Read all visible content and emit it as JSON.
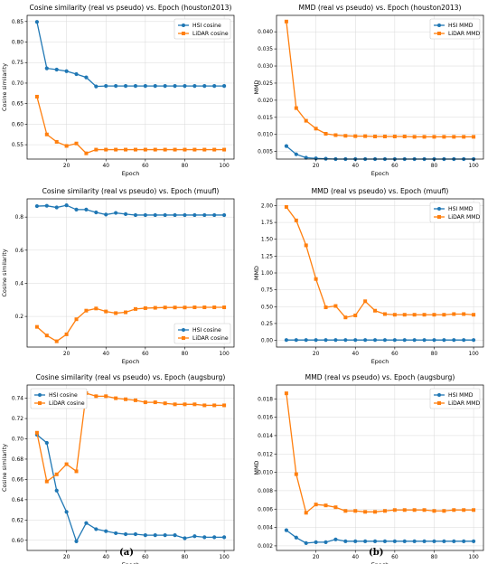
{
  "captions": {
    "left": "(a)",
    "right": "(b)"
  },
  "colors": {
    "hsi": "#1f77b4",
    "lidar": "#ff7f0e",
    "grid": "#d9d9d9"
  },
  "chart_data": [
    {
      "type": "line",
      "title": "Cosine similarity (real vs pseudo) vs. Epoch (houston2013)",
      "xlabel": "Epoch",
      "ylabel": "Cosine similarity",
      "xlim": [
        0,
        105
      ],
      "ylim": [
        0.515,
        0.865
      ],
      "xticks": [
        20,
        40,
        60,
        80,
        100
      ],
      "yticks": [
        0.55,
        0.6,
        0.65,
        0.7,
        0.75,
        0.8,
        0.85
      ],
      "yticklabels": [
        "0.55",
        "0.60",
        "0.65",
        "0.70",
        "0.75",
        "0.80",
        "0.85"
      ],
      "grid": true,
      "legend": "top-right",
      "x": [
        5,
        10,
        15,
        20,
        25,
        30,
        35,
        40,
        45,
        50,
        55,
        60,
        65,
        70,
        75,
        80,
        85,
        90,
        95,
        100
      ],
      "series": [
        {
          "name": "HSI cosine",
          "color": "#1f77b4",
          "marker": "circle",
          "values": [
            0.849,
            0.736,
            0.733,
            0.729,
            0.722,
            0.714,
            0.692,
            0.693,
            0.693,
            0.693,
            0.693,
            0.693,
            0.693,
            0.693,
            0.693,
            0.693,
            0.693,
            0.693,
            0.693,
            0.693
          ]
        },
        {
          "name": "LiDAR cosine",
          "color": "#ff7f0e",
          "marker": "square",
          "values": [
            0.667,
            0.575,
            0.557,
            0.547,
            0.553,
            0.529,
            0.538,
            0.538,
            0.538,
            0.538,
            0.538,
            0.538,
            0.538,
            0.538,
            0.538,
            0.538,
            0.538,
            0.538,
            0.538,
            0.538
          ]
        }
      ]
    },
    {
      "type": "line",
      "title": "MMD (real vs pseudo) vs. Epoch (houston2013)",
      "xlabel": "Epoch",
      "ylabel": "MMD",
      "xlim": [
        0,
        105
      ],
      "ylim": [
        0.0028,
        0.0448
      ],
      "xticks": [
        20,
        40,
        60,
        80,
        100
      ],
      "yticks": [
        0.005,
        0.01,
        0.015,
        0.02,
        0.025,
        0.03,
        0.035,
        0.04
      ],
      "yticklabels": [
        "0.005",
        "0.010",
        "0.015",
        "0.020",
        "0.025",
        "0.030",
        "0.035",
        "0.040"
      ],
      "grid": true,
      "legend": "top-right",
      "x": [
        5,
        10,
        15,
        20,
        25,
        30,
        35,
        40,
        45,
        50,
        55,
        60,
        65,
        70,
        75,
        80,
        85,
        90,
        95,
        100
      ],
      "series": [
        {
          "name": "HSI MMD",
          "color": "#1f77b4",
          "marker": "circle",
          "values": [
            0.0066,
            0.0042,
            0.0032,
            0.003,
            0.0029,
            0.0028,
            0.0028,
            0.0028,
            0.0028,
            0.0028,
            0.0028,
            0.0028,
            0.0028,
            0.0028,
            0.0028,
            0.0028,
            0.0028,
            0.0028,
            0.0028,
            0.0028
          ]
        },
        {
          "name": "LiDAR MMD",
          "color": "#ff7f0e",
          "marker": "square",
          "values": [
            0.043,
            0.0177,
            0.014,
            0.0117,
            0.0102,
            0.0098,
            0.0096,
            0.0095,
            0.0095,
            0.0094,
            0.0094,
            0.0094,
            0.0094,
            0.0093,
            0.0093,
            0.0093,
            0.0093,
            0.0093,
            0.0093,
            0.0093
          ]
        }
      ]
    },
    {
      "type": "line",
      "title": "Cosine similarity (real vs pseudo) vs. Epoch (muufl)",
      "xlabel": "Epoch",
      "ylabel": "Cosine similarity",
      "xlim": [
        0,
        105
      ],
      "ylim": [
        0.015,
        0.91
      ],
      "xticks": [
        20,
        40,
        60,
        80,
        100
      ],
      "yticks": [
        0.2,
        0.4,
        0.6,
        0.8
      ],
      "yticklabels": [
        "0.2",
        "0.4",
        "0.6",
        "0.8"
      ],
      "grid": true,
      "legend": "bottom-right",
      "x": [
        5,
        10,
        15,
        20,
        25,
        30,
        35,
        40,
        45,
        50,
        55,
        60,
        65,
        70,
        75,
        80,
        85,
        90,
        95,
        100
      ],
      "series": [
        {
          "name": "HSI cosine",
          "color": "#1f77b4",
          "marker": "circle",
          "values": [
            0.866,
            0.868,
            0.858,
            0.871,
            0.845,
            0.845,
            0.828,
            0.815,
            0.825,
            0.818,
            0.812,
            0.812,
            0.812,
            0.812,
            0.812,
            0.812,
            0.812,
            0.812,
            0.812,
            0.812
          ]
        },
        {
          "name": "LiDAR cosine",
          "color": "#ff7f0e",
          "marker": "square",
          "values": [
            0.137,
            0.085,
            0.05,
            0.092,
            0.183,
            0.235,
            0.248,
            0.23,
            0.22,
            0.225,
            0.245,
            0.25,
            0.252,
            0.254,
            0.254,
            0.254,
            0.255,
            0.255,
            0.255,
            0.255
          ]
        }
      ]
    },
    {
      "type": "line",
      "title": "MMD (real vs pseudo) vs. Epoch (muufl)",
      "xlabel": "Epoch",
      "ylabel": "MMD",
      "xlim": [
        0,
        105
      ],
      "ylim": [
        -0.1,
        2.1
      ],
      "xticks": [
        20,
        40,
        60,
        80,
        100
      ],
      "yticks": [
        0,
        0.25,
        0.5,
        0.75,
        1,
        1.25,
        1.5,
        1.75,
        2
      ],
      "yticklabels": [
        "0.00",
        "0.25",
        "0.50",
        "0.75",
        "1.00",
        "1.25",
        "1.50",
        "1.75",
        "2.00"
      ],
      "grid": true,
      "legend": "top-right",
      "x": [
        5,
        10,
        15,
        20,
        25,
        30,
        35,
        40,
        45,
        50,
        55,
        60,
        65,
        70,
        75,
        80,
        85,
        90,
        95,
        100
      ],
      "series": [
        {
          "name": "HSI MMD",
          "color": "#1f77b4",
          "marker": "circle",
          "values": [
            0.005,
            0.005,
            0.005,
            0.005,
            0.005,
            0.005,
            0.005,
            0.005,
            0.005,
            0.005,
            0.005,
            0.005,
            0.005,
            0.005,
            0.005,
            0.005,
            0.005,
            0.005,
            0.005,
            0.005
          ]
        },
        {
          "name": "LiDAR MMD",
          "color": "#ff7f0e",
          "marker": "square",
          "values": [
            1.98,
            1.78,
            1.41,
            0.91,
            0.49,
            0.51,
            0.34,
            0.37,
            0.58,
            0.44,
            0.39,
            0.38,
            0.38,
            0.38,
            0.38,
            0.38,
            0.38,
            0.39,
            0.39,
            0.38
          ]
        }
      ]
    },
    {
      "type": "line",
      "title": "Cosine similarity (real vs pseudo) vs. Epoch (augsburg)",
      "xlabel": "Epoch",
      "ylabel": "Cosine similarity",
      "xlim": [
        0,
        105
      ],
      "ylim": [
        0.59,
        0.753
      ],
      "xticks": [
        20,
        40,
        60,
        80,
        100
      ],
      "yticks": [
        0.6,
        0.62,
        0.64,
        0.66,
        0.68,
        0.7,
        0.72,
        0.74
      ],
      "yticklabels": [
        "0.60",
        "0.62",
        "0.64",
        "0.66",
        "0.68",
        "0.70",
        "0.72",
        "0.74"
      ],
      "grid": true,
      "legend": "top-left",
      "x": [
        5,
        10,
        15,
        20,
        25,
        30,
        35,
        40,
        45,
        50,
        55,
        60,
        65,
        70,
        75,
        80,
        85,
        90,
        95,
        100
      ],
      "series": [
        {
          "name": "HSI cosine",
          "color": "#1f77b4",
          "marker": "circle",
          "values": [
            0.704,
            0.696,
            0.649,
            0.628,
            0.599,
            0.617,
            0.611,
            0.609,
            0.607,
            0.606,
            0.606,
            0.605,
            0.605,
            0.605,
            0.605,
            0.602,
            0.604,
            0.603,
            0.603,
            0.603
          ]
        },
        {
          "name": "LiDAR cosine",
          "color": "#ff7f0e",
          "marker": "square",
          "values": [
            0.706,
            0.658,
            0.665,
            0.675,
            0.668,
            0.745,
            0.742,
            0.742,
            0.74,
            0.739,
            0.738,
            0.736,
            0.736,
            0.735,
            0.734,
            0.734,
            0.734,
            0.733,
            0.733,
            0.733
          ]
        }
      ]
    },
    {
      "type": "line",
      "title": "MMD (real vs pseudo) vs. Epoch (augsburg)",
      "xlabel": "Epoch",
      "ylabel": "MMD",
      "xlim": [
        0,
        105
      ],
      "ylim": [
        0.0015,
        0.0195
      ],
      "xticks": [
        20,
        40,
        60,
        80,
        100
      ],
      "yticks": [
        0.002,
        0.004,
        0.006,
        0.008,
        0.01,
        0.012,
        0.014,
        0.016,
        0.018
      ],
      "yticklabels": [
        "0.002",
        "0.004",
        "0.006",
        "0.008",
        "0.010",
        "0.012",
        "0.014",
        "0.016",
        "0.018"
      ],
      "grid": true,
      "legend": "top-right",
      "x": [
        5,
        10,
        15,
        20,
        25,
        30,
        35,
        40,
        45,
        50,
        55,
        60,
        65,
        70,
        75,
        80,
        85,
        90,
        95,
        100
      ],
      "series": [
        {
          "name": "HSI MMD",
          "color": "#1f77b4",
          "marker": "circle",
          "values": [
            0.0037,
            0.0029,
            0.0023,
            0.0024,
            0.0024,
            0.0027,
            0.0025,
            0.0025,
            0.0025,
            0.0025,
            0.0025,
            0.0025,
            0.0025,
            0.0025,
            0.0025,
            0.0025,
            0.0025,
            0.0025,
            0.0025,
            0.0025
          ]
        },
        {
          "name": "LiDAR MMD",
          "color": "#ff7f0e",
          "marker": "square",
          "values": [
            0.0186,
            0.0098,
            0.0056,
            0.0065,
            0.0064,
            0.0062,
            0.0058,
            0.0058,
            0.0057,
            0.0057,
            0.0058,
            0.0059,
            0.0059,
            0.0059,
            0.0059,
            0.0058,
            0.0058,
            0.0059,
            0.0059,
            0.0059
          ]
        }
      ]
    }
  ]
}
